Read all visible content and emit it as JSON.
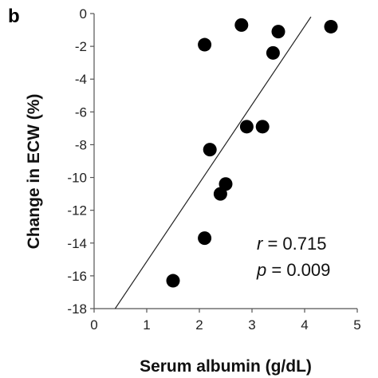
{
  "panel_label": "b",
  "chart_data": {
    "type": "scatter",
    "xlabel": "Serum albumin (g/dL)",
    "ylabel": "Change in ECW (%)",
    "xlim": [
      0,
      5
    ],
    "ylim": [
      -18,
      0
    ],
    "xticks": [
      0,
      1,
      2,
      3,
      4,
      5
    ],
    "yticks": [
      0,
      -2,
      -4,
      -6,
      -8,
      -10,
      -12,
      -14,
      -16,
      -18
    ],
    "points": [
      {
        "x": 1.5,
        "y": -16.3
      },
      {
        "x": 2.1,
        "y": -13.7
      },
      {
        "x": 2.1,
        "y": -1.9
      },
      {
        "x": 2.2,
        "y": -8.3
      },
      {
        "x": 2.4,
        "y": -11.0
      },
      {
        "x": 2.5,
        "y": -10.4
      },
      {
        "x": 2.8,
        "y": -0.7
      },
      {
        "x": 2.9,
        "y": -6.9
      },
      {
        "x": 3.2,
        "y": -6.9
      },
      {
        "x": 3.4,
        "y": -2.4
      },
      {
        "x": 3.5,
        "y": -1.1
      },
      {
        "x": 4.5,
        "y": -0.8
      }
    ],
    "trendline": {
      "x": [
        0.4,
        4.12
      ],
      "y": [
        -18,
        -0.2
      ]
    },
    "grid": false,
    "marker_color": "#000000",
    "annotations": {
      "r_symbol": "r",
      "r_value": " = 0.715",
      "p_symbol": "p",
      "p_value": " = 0.009"
    }
  }
}
